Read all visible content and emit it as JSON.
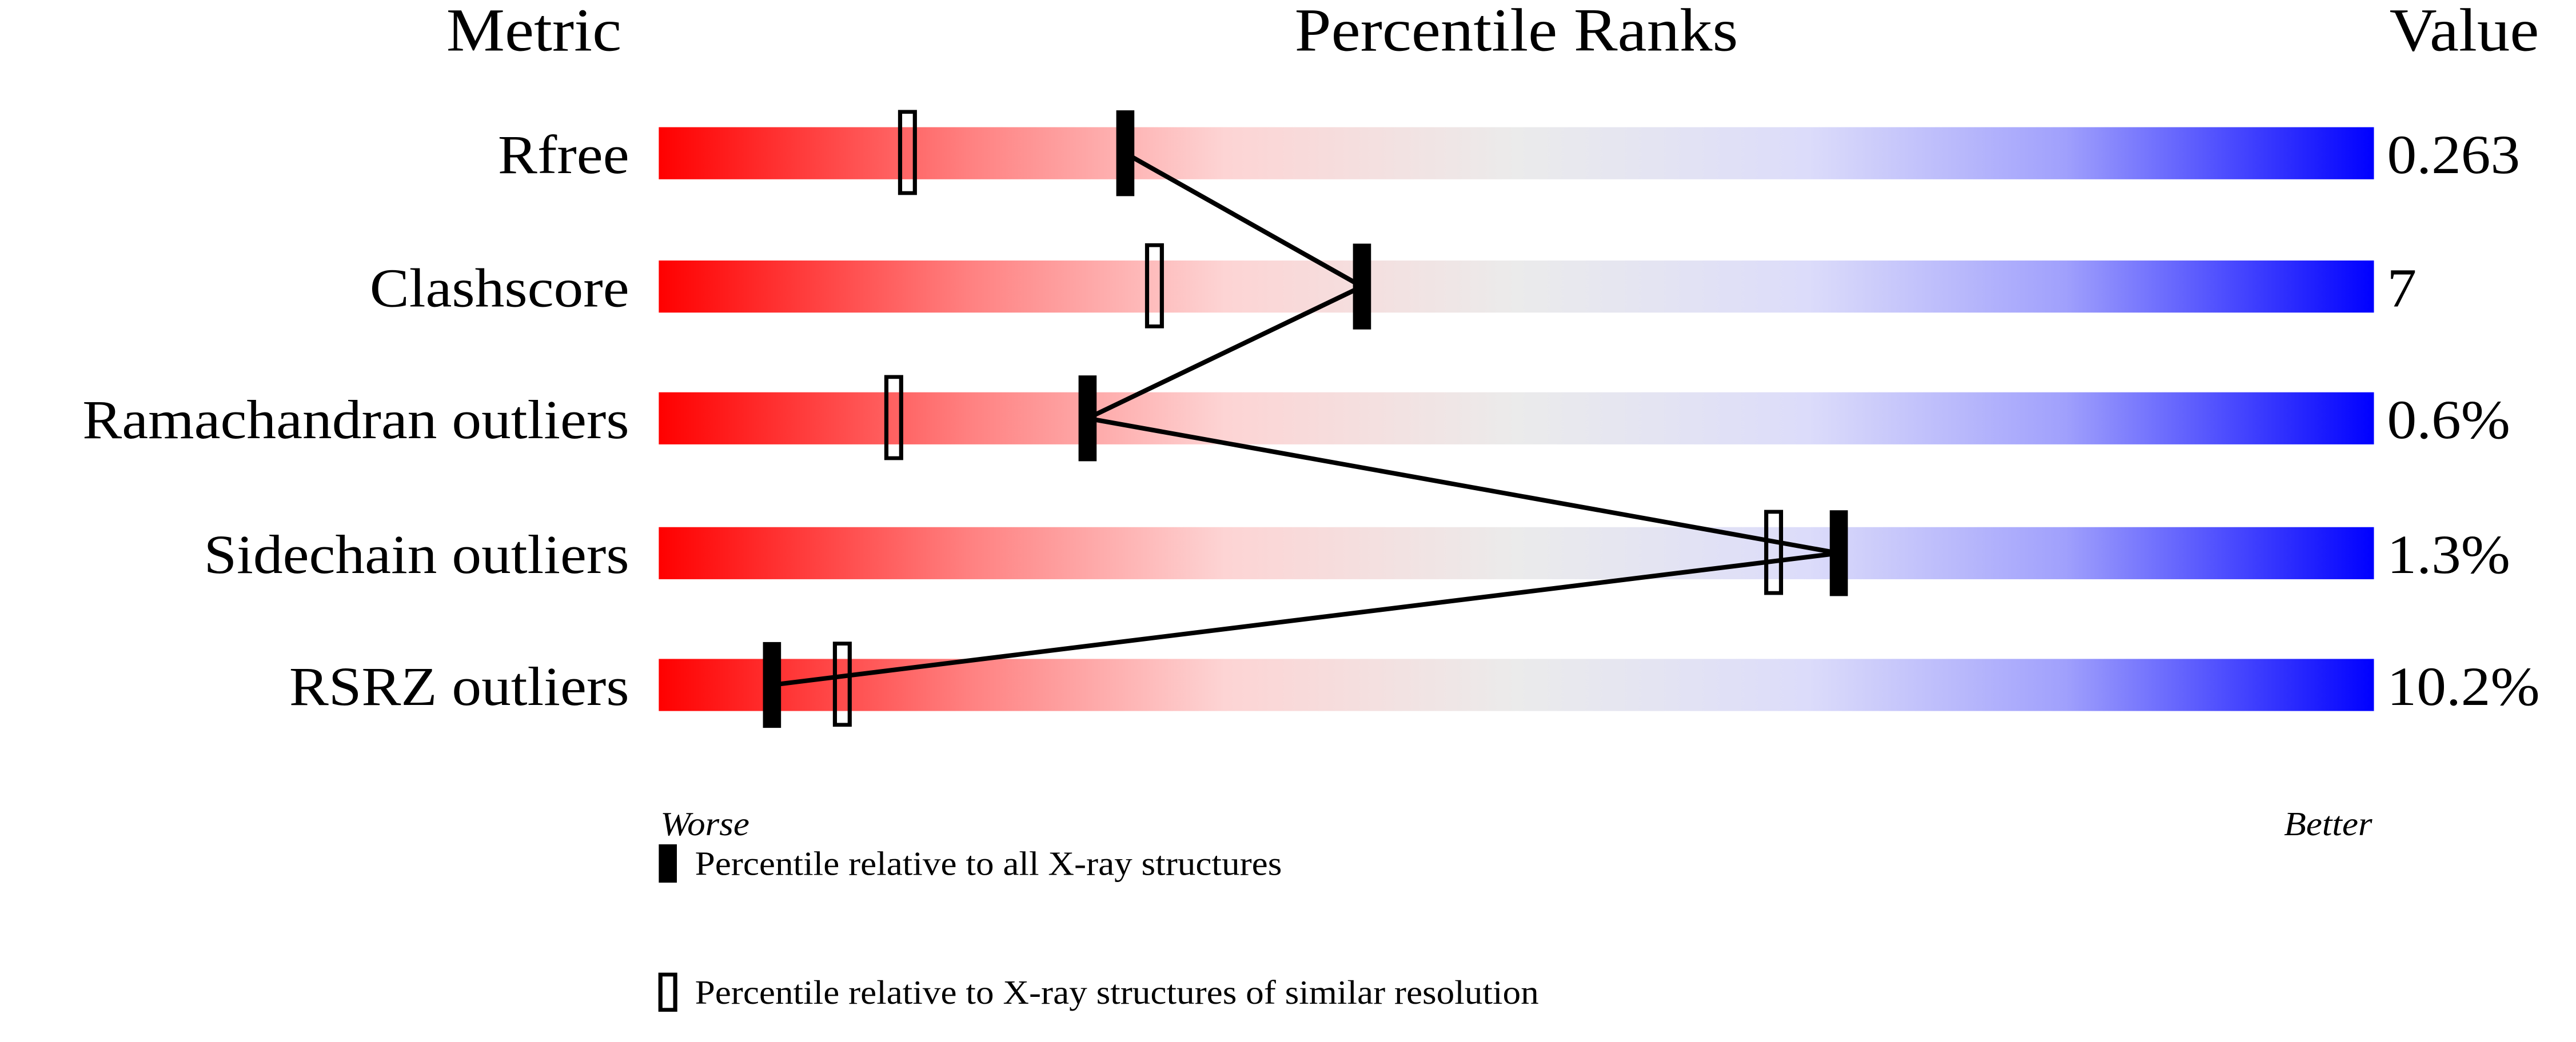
{
  "chart_data": {
    "type": "percentile-ranks",
    "headers": {
      "metric": "Metric",
      "ranks": "Percentile Ranks",
      "value": "Value"
    },
    "xlim": [
      0,
      100
    ],
    "axis_labels": {
      "left": "Worse",
      "right": "Better"
    },
    "colors": {
      "worse": "#ff0000",
      "middle": "#ebebeb",
      "better": "#0000ff"
    },
    "metrics": [
      {
        "name": "Rfree",
        "value": "0.263",
        "percentile_all": 27.2,
        "percentile_similar": 14.5
      },
      {
        "name": "Clashscore",
        "value": "7",
        "percentile_all": 41.0,
        "percentile_similar": 28.9
      },
      {
        "name": "Ramachandran outliers",
        "value": "0.6%",
        "percentile_all": 25.0,
        "percentile_similar": 13.7
      },
      {
        "name": "Sidechain outliers",
        "value": "1.3%",
        "percentile_all": 68.8,
        "percentile_similar": 65.0
      },
      {
        "name": "RSRZ outliers",
        "value": "10.2%",
        "percentile_all": 6.6,
        "percentile_similar": 10.7
      }
    ],
    "legend": {
      "all": "Percentile relative to all X-ray structures",
      "similar": "Percentile relative to X-ray structures of similar resolution"
    }
  }
}
